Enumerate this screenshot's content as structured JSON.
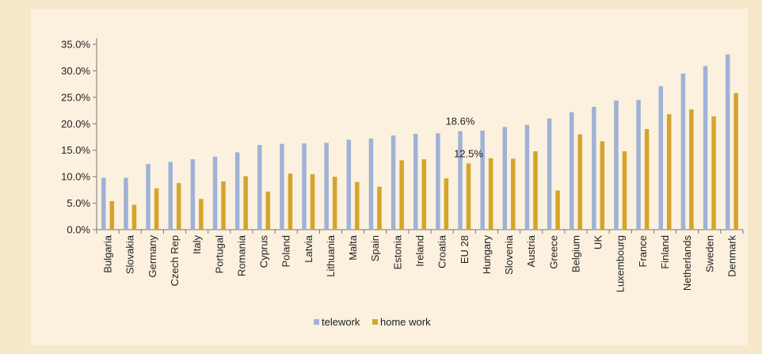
{
  "chart_data": {
    "type": "bar",
    "categories": [
      "Bulgaria",
      "Slovakia",
      "Germany",
      "Czech Rep",
      "Italy",
      "Portugal",
      "Romania",
      "Cyprus",
      "Poland",
      "Latvia",
      "Lithuania",
      "Malta",
      "Spain",
      "Estonia",
      "Ireland",
      "Croatia",
      "EU 28",
      "Hungary",
      "Slovenia",
      "Austria",
      "Greece",
      "Belgium",
      "UK",
      "Luxembourg",
      "France",
      "Finland",
      "Netherlands",
      "Sweden",
      "Denmark"
    ],
    "series": [
      {
        "name": "telework",
        "color": "#9fb2d6",
        "values": [
          9.8,
          9.8,
          12.4,
          12.8,
          13.3,
          13.8,
          14.6,
          16.0,
          16.2,
          16.3,
          16.4,
          17.0,
          17.2,
          17.8,
          18.1,
          18.2,
          18.6,
          18.7,
          19.4,
          19.8,
          21.0,
          22.2,
          23.2,
          24.4,
          24.5,
          27.1,
          29.5,
          30.9,
          33.1
        ]
      },
      {
        "name": "home work",
        "color": "#d4a42c",
        "values": [
          5.4,
          4.7,
          7.8,
          8.8,
          5.8,
          9.1,
          10.1,
          7.2,
          10.6,
          10.5,
          10.0,
          9.0,
          8.1,
          13.1,
          13.3,
          9.7,
          12.5,
          13.5,
          13.4,
          14.8,
          7.4,
          18.0,
          16.7,
          14.8,
          19.0,
          21.8,
          22.7,
          21.4,
          25.8
        ]
      }
    ],
    "annotations": [
      {
        "text": "18.6%",
        "category": "EU 28",
        "series": "telework"
      },
      {
        "text": "12.5%",
        "category": "EU 28",
        "series": "home work"
      }
    ],
    "y_ticks": [
      "0.0%",
      "5.0%",
      "10.0%",
      "15.0%",
      "20.0%",
      "25.0%",
      "30.0%",
      "35.0%"
    ],
    "ylim": [
      0,
      35
    ],
    "title": "",
    "xlabel": "",
    "ylabel": "",
    "grid": false,
    "legend_position": "bottom"
  }
}
